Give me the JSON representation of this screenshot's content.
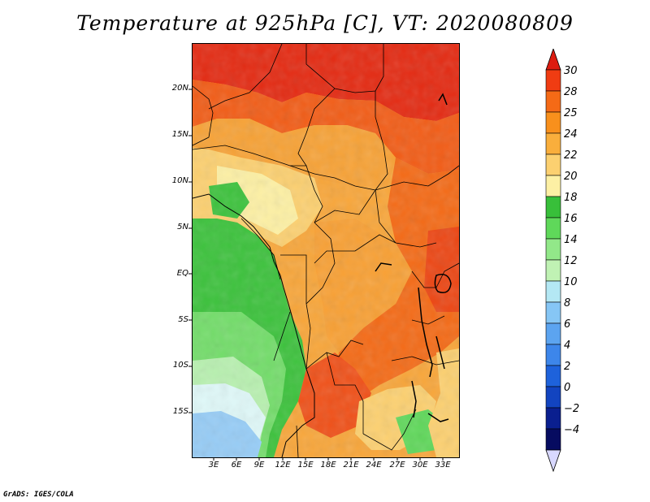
{
  "title": "Temperature at 925hPa [C], VT: 2020080809",
  "credit": "GrADS: IGES/COLA",
  "map": {
    "lat_range": [
      -20,
      24.5
    ],
    "lon_range": [
      0,
      35
    ],
    "lat_labels": [
      "20N",
      "15N",
      "10N",
      "5N",
      "EQ",
      "5S",
      "10S",
      "15S"
    ],
    "lat_values": [
      20,
      15,
      10,
      5,
      0,
      -5,
      -10,
      -15
    ],
    "lon_labels": [
      "3E",
      "6E",
      "9E",
      "12E",
      "15E",
      "18E",
      "21E",
      "24E",
      "27E",
      "30E",
      "33E"
    ],
    "lon_values": [
      3,
      6,
      9,
      12,
      15,
      18,
      21,
      24,
      27,
      30,
      33
    ]
  },
  "colorbar": {
    "labels": [
      "30",
      "28",
      "25",
      "24",
      "22",
      "20",
      "18",
      "16",
      "14",
      "12",
      "10",
      "8",
      "6",
      "4",
      "2",
      "0",
      "−2",
      "−4"
    ],
    "colors": [
      "#dd1c10",
      "#f03c12",
      "#f56a16",
      "#f8901c",
      "#f9ae3c",
      "#fcd070",
      "#fdf0a4",
      "#38bf3a",
      "#5fd85a",
      "#92e889",
      "#c0f2b4",
      "#b4e8f4",
      "#86c6f5",
      "#5ca4f0",
      "#3d86ea",
      "#1e62db",
      "#1244c0",
      "#0a1f8f",
      "#060b60"
    ],
    "top_color": "#dd1c10",
    "bottom_color": "#d8d8ff"
  }
}
